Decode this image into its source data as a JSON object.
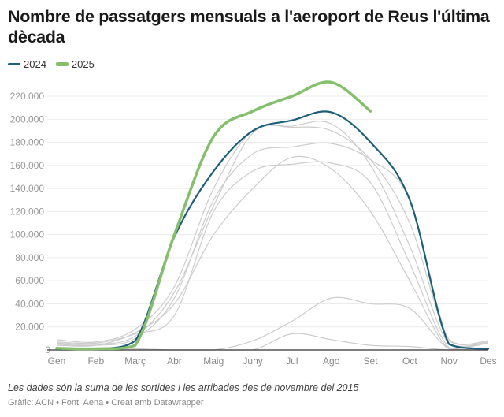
{
  "title": "Nombre de passatgers mensuals a l'aeroport de Reus l'última dècada",
  "note": "Les dades són la suma de les sortides i les arribades des de novembre del 2015",
  "source": "Gràfic: ACN • Font: Aena • Creat amb Datawrapper",
  "chart_data": {
    "type": "line",
    "title": "Nombre de passatgers mensuals a l'aeroport de Reus l'última dècada",
    "categories": [
      "Gen",
      "Feb",
      "Març",
      "Abr",
      "Maig",
      "Juny",
      "Jul",
      "Ago",
      "Set",
      "Oct",
      "Nov",
      "Des"
    ],
    "ylim": [
      0,
      230000
    ],
    "yticks": [
      "0",
      "20.000",
      "40.000",
      "60.000",
      "80.000",
      "100.000",
      "120.000",
      "140.000",
      "160.000",
      "180.000",
      "200.000",
      "220.000"
    ],
    "grid": true,
    "legend_position": "top-left",
    "highlighted_series": [
      {
        "name": "2024",
        "color": "#1d5e78",
        "values": [
          1000,
          1000,
          8000,
          98000,
          155000,
          190000,
          199000,
          206000,
          180000,
          130000,
          5000,
          1000
        ]
      },
      {
        "name": "2025",
        "color": "#86bf6c",
        "values": [
          1500,
          1000,
          4000,
          100000,
          185000,
          207000,
          220000,
          232000,
          207000
        ]
      }
    ],
    "background_series_color": "#cccccc",
    "background_series": [
      {
        "values": [
          9000,
          7000,
          18000,
          55000,
          140000,
          190000,
          193000,
          190000,
          165000,
          110000,
          9000,
          8000
        ]
      },
      {
        "values": [
          6000,
          5000,
          12000,
          50000,
          125000,
          188000,
          194000,
          196000,
          160000,
          90000,
          5000,
          7000
        ]
      },
      {
        "values": [
          5000,
          4000,
          10000,
          45000,
          130000,
          170000,
          176000,
          179000,
          165000,
          130000,
          8000,
          8000
        ]
      },
      {
        "values": [
          7000,
          6000,
          14000,
          30000,
          120000,
          155000,
          161000,
          162000,
          145000,
          75000,
          2000,
          7000
        ]
      },
      {
        "values": [
          4000,
          4000,
          15000,
          40000,
          100000,
          140000,
          167000,
          157000,
          120000,
          60000,
          1000,
          6000
        ]
      },
      {
        "values": [
          0,
          0,
          0,
          0,
          0,
          8000,
          25000,
          45000,
          40000,
          36000,
          1000,
          0
        ]
      },
      {
        "values": [
          1000,
          1000,
          1000,
          0,
          0,
          0,
          14000,
          9000,
          4000,
          3000,
          0,
          0
        ]
      }
    ]
  }
}
